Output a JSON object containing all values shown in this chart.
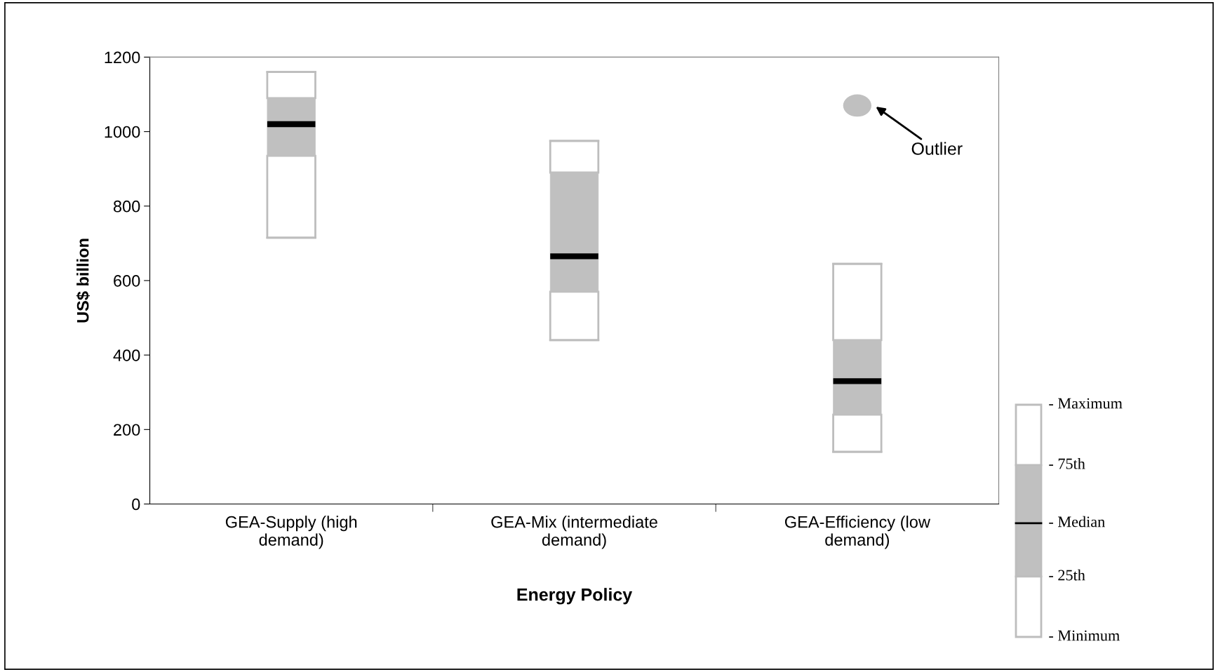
{
  "chart_data": {
    "type": "box",
    "xlabel": "Energy Policy",
    "ylabel": "US$ billion",
    "categories": [
      "GEA-Supply (high\ndemand)",
      "GEA-Mix (intermediate\ndemand)",
      "GEA-Efficiency (low\ndemand)"
    ],
    "boxes": [
      {
        "low": 715,
        "q1": 935,
        "median": 1020,
        "q3": 1090,
        "high": 1160
      },
      {
        "low": 440,
        "q1": 570,
        "median": 665,
        "q3": 890,
        "high": 975
      },
      {
        "low": 140,
        "q1": 240,
        "median": 330,
        "q3": 440,
        "high": 645,
        "outliers": [
          1070
        ]
      }
    ],
    "ylim": [
      0,
      1200
    ],
    "yticks": [
      0,
      200,
      400,
      600,
      800,
      1000,
      1200
    ],
    "grid": false,
    "legend": false,
    "annotations": [
      "Outlier",
      "- Maximum",
      "- 75th",
      "- Median",
      "- 25th",
      "- Minimum"
    ]
  }
}
